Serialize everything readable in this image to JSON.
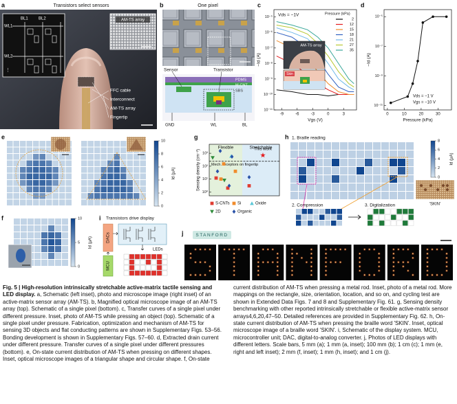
{
  "panel_labels": [
    "a",
    "b",
    "c",
    "d",
    "e",
    "f",
    "g",
    "h",
    "i",
    "j"
  ],
  "a": {
    "title": "Transistors select sensors",
    "schematic_labels": [
      "WL1",
      "BL1",
      "BL2",
      "WL2"
    ],
    "inset_label": "AM-TS array",
    "callouts": [
      "FFC cable",
      "Interconnect",
      "AM-TS array",
      "Fingertip"
    ]
  },
  "b": {
    "title": "One pixel",
    "labels": [
      "Sensor",
      "Transistor"
    ],
    "layers": [
      "PDMS",
      "M-CNT",
      "SBS"
    ],
    "terminals": [
      "GND",
      "WL",
      "BL"
    ]
  },
  "c": {
    "type": "line",
    "yscale": "log",
    "annotation": "Vds = −1V",
    "x_label": "Vgs (V)",
    "y_label": "−Id (A)",
    "inset_labels": [
      "AM-TS array",
      "Skin"
    ],
    "legend_title": "Pressure (kPa)",
    "x": [
      -10,
      -7,
      -4,
      -2,
      0,
      2,
      4,
      5
    ],
    "series": [
      {
        "name": "2",
        "color": "#111111",
        "values": [
          2e-10,
          1.5e-10,
          1e-10,
          1e-10,
          8e-11,
          1e-10,
          1e-10,
          1e-10
        ]
      },
      {
        "name": "12",
        "color": "#e41a1c",
        "values": [
          3e-08,
          1e-08,
          2e-09,
          5e-10,
          2e-10,
          1e-10,
          1e-10,
          1e-10
        ]
      },
      {
        "name": "15",
        "color": "#f08c2c",
        "values": [
          3e-07,
          1e-07,
          2e-08,
          3e-09,
          5e-10,
          1.5e-10,
          1e-10,
          1e-10
        ]
      },
      {
        "name": "18",
        "color": "#3060c0",
        "values": [
          1e-06,
          5e-07,
          1e-07,
          2e-08,
          2e-09,
          3e-10,
          1.5e-10,
          1.5e-10
        ]
      },
      {
        "name": "21",
        "color": "#6fb8e8",
        "values": [
          2e-06,
          1e-06,
          4e-07,
          8e-08,
          1e-08,
          1e-09,
          3e-10,
          2e-10
        ]
      },
      {
        "name": "27",
        "color": "#b8c832",
        "values": [
          3e-06,
          2e-06,
          8e-07,
          2e-07,
          3e-08,
          3e-09,
          5e-10,
          3e-10
        ]
      },
      {
        "name": "35",
        "color": "#3aa79a",
        "values": [
          5e-06,
          3e-06,
          1.5e-06,
          5e-07,
          1e-07,
          1e-08,
          1e-09,
          5e-10
        ]
      }
    ],
    "xlim": [
      -10.5,
      5.5
    ],
    "xticks": [
      -9,
      -6,
      -3,
      0,
      3
    ],
    "ylim": [
      1e-11,
      3e-05
    ],
    "yticks": [
      {
        "value": 1e-05,
        "label": "10⁻⁵"
      },
      {
        "value": 1e-06,
        "label": "10⁻⁶"
      },
      {
        "value": 1e-07,
        "label": "10⁻⁷"
      },
      {
        "value": 1e-08,
        "label": "10⁻⁸"
      },
      {
        "value": 1e-09,
        "label": "10⁻⁹"
      },
      {
        "value": 1e-10,
        "label": "10⁻¹⁰"
      },
      {
        "value": 1e-11,
        "label": "10⁻¹¹"
      }
    ]
  },
  "d": {
    "type": "line",
    "yscale": "log",
    "annotations": [
      "Vds = −1 V",
      "Vgs = −10 V"
    ],
    "x_label": "Pressure (kPa)",
    "y_label": "−Id (A)",
    "color": "#111111",
    "x": [
      2,
      12,
      15,
      18,
      21,
      27,
      35
    ],
    "values": [
      1.5e-11,
      4e-11,
      3e-10,
      1e-08,
      4e-06,
      1e-05,
      1e-05
    ],
    "xlim": [
      -2,
      38
    ],
    "xticks": [
      0,
      10,
      20,
      30
    ],
    "ylim": [
      5e-12,
      3e-05
    ],
    "yticks": [
      {
        "value": 1e-05,
        "label": "10⁻⁵"
      },
      {
        "value": 1e-07,
        "label": "10⁻⁷"
      },
      {
        "value": 1e-09,
        "label": "10⁻⁹"
      },
      {
        "value": 1e-11,
        "label": "10⁻¹¹"
      }
    ]
  },
  "e": {
    "grids": [
      [
        [
          1,
          1,
          1,
          1,
          1,
          1,
          1,
          1,
          1,
          1
        ],
        [
          1,
          1,
          1,
          1,
          1,
          1,
          1,
          1,
          1,
          1
        ],
        [
          1,
          1,
          1,
          1,
          5,
          6,
          1,
          1,
          1,
          1
        ],
        [
          1,
          1,
          1,
          6,
          7,
          7,
          6,
          1,
          1,
          1
        ],
        [
          1,
          1,
          6,
          7,
          8,
          8,
          7,
          6,
          1,
          1
        ],
        [
          1,
          1,
          6,
          8,
          8,
          8,
          8,
          6,
          1,
          1
        ],
        [
          1,
          1,
          5,
          7,
          8,
          8,
          7,
          5,
          1,
          1
        ],
        [
          1,
          1,
          1,
          6,
          7,
          7,
          6,
          1,
          1,
          1
        ],
        [
          1,
          1,
          1,
          1,
          5,
          5,
          1,
          1,
          1,
          1
        ],
        [
          1,
          1,
          1,
          1,
          1,
          1,
          1,
          1,
          1,
          1
        ]
      ],
      [
        [
          1,
          1,
          1,
          1,
          1,
          1,
          1,
          1,
          1,
          1
        ],
        [
          1,
          1,
          1,
          1,
          1,
          1,
          1,
          1,
          1,
          1
        ],
        [
          1,
          1,
          1,
          1,
          1,
          6,
          1,
          1,
          1,
          1
        ],
        [
          1,
          1,
          1,
          1,
          6,
          7,
          1,
          1,
          1,
          1
        ],
        [
          1,
          1,
          1,
          6,
          7,
          8,
          6,
          1,
          1,
          1
        ],
        [
          1,
          1,
          1,
          7,
          8,
          8,
          7,
          1,
          1,
          1
        ],
        [
          1,
          1,
          6,
          7,
          8,
          8,
          8,
          6,
          1,
          1
        ],
        [
          1,
          1,
          7,
          8,
          8,
          8,
          8,
          7,
          1,
          1
        ],
        [
          1,
          6,
          7,
          7,
          7,
          7,
          7,
          7,
          6,
          1
        ],
        [
          1,
          1,
          1,
          1,
          1,
          1,
          1,
          1,
          1,
          1
        ]
      ]
    ],
    "colorbar": {
      "label": "Id (µA)",
      "lim": [
        0,
        10
      ],
      "ticks": [
        0,
        2,
        4,
        6,
        8,
        10
      ],
      "colors": [
        "#d6e4f0",
        "#10468f"
      ]
    }
  },
  "f": {
    "grid": [
      [
        1,
        1,
        1,
        1,
        1,
        1,
        1,
        1
      ],
      [
        1,
        1,
        1,
        1,
        1,
        6,
        1,
        1
      ],
      [
        1,
        1,
        1,
        1,
        7,
        8,
        7,
        1
      ],
      [
        1,
        1,
        1,
        1,
        7,
        9,
        8,
        1
      ],
      [
        1,
        1,
        1,
        1,
        6,
        8,
        7,
        1
      ],
      [
        1,
        1,
        1,
        1,
        1,
        6,
        1,
        1
      ],
      [
        1,
        1,
        1,
        1,
        1,
        1,
        1,
        1
      ]
    ],
    "colorbar": {
      "label": "Id (µA)",
      "lim": [
        0,
        10
      ],
      "ticks": [
        0,
        5,
        10
      ],
      "colors": [
        "#d6e4f0",
        "#10468f"
      ]
    }
  },
  "g": {
    "y_label": "Sensing density (cm⁻²)",
    "yscale": "log",
    "ylim": [
      0.5,
      5000
    ],
    "yticks": [
      {
        "value": 1,
        "label": "10⁰"
      },
      {
        "value": 10,
        "label": "10¹"
      },
      {
        "value": 100,
        "label": "10²"
      },
      {
        "value": 1000,
        "label": "10³"
      }
    ],
    "regions": {
      "flexible": "Flexible",
      "stretchable": "Stretchable"
    },
    "reference": {
      "label": "Mech. receptors on fingertip",
      "value": 240
    },
    "this_work": {
      "label": "This work",
      "value": 700,
      "color": "#e41a1c"
    },
    "series": [
      {
        "name": "S-CNTs",
        "color": "#e03c31",
        "marker": "square",
        "flexible": [
          12,
          2
        ],
        "stretchable": [
          3
        ]
      },
      {
        "name": "Si",
        "color": "#f08c2c",
        "marker": "square",
        "flexible": [
          150,
          40,
          10
        ],
        "stretchable": []
      },
      {
        "name": "Oxide",
        "color": "#5bc8d8",
        "marker": "triangle",
        "flexible": [
          600
        ],
        "stretchable": []
      },
      {
        "name": "2D",
        "color": "#2e8b3a",
        "marker": "triangle-down",
        "flexible": [
          450,
          8
        ],
        "stretchable": []
      },
      {
        "name": "Organic",
        "color": "#2a52a8",
        "marker": "diamond",
        "flexible": [
          1500,
          550,
          40,
          3
        ],
        "stretchable": [
          14
        ]
      }
    ]
  },
  "h": {
    "steps": [
      "1. Braille reading",
      "2. Compression",
      "3. Digitalization"
    ],
    "inset_label": "'SKIN'",
    "grid": [
      [
        1,
        1,
        1,
        1,
        1,
        1,
        1,
        1,
        1,
        1,
        1,
        1,
        1,
        1,
        1
      ],
      [
        1,
        1,
        1,
        1,
        1,
        1,
        1,
        1,
        1,
        1,
        1,
        1,
        1,
        1,
        1
      ],
      [
        1,
        1,
        8,
        1,
        1,
        8,
        1,
        1,
        1,
        7,
        1,
        1,
        8,
        8,
        1
      ],
      [
        1,
        7,
        1,
        1,
        1,
        1,
        1,
        1,
        8,
        1,
        1,
        1,
        1,
        7,
        1
      ],
      [
        1,
        8,
        1,
        1,
        1,
        7,
        1,
        1,
        1,
        1,
        1,
        1,
        8,
        1,
        1
      ],
      [
        1,
        1,
        1,
        1,
        1,
        1,
        1,
        1,
        1,
        1,
        1,
        1,
        1,
        1,
        1
      ],
      [
        1,
        1,
        1,
        1,
        1,
        1,
        1,
        1,
        1,
        1,
        1,
        1,
        1,
        1,
        1
      ]
    ],
    "compression": [
      [
        1,
        8,
        8,
        1,
        1,
        7,
        8,
        8
      ],
      [
        7,
        1,
        1,
        1,
        8,
        1,
        1,
        7
      ],
      [
        8,
        1,
        7,
        1,
        1,
        1,
        8,
        1
      ]
    ],
    "digitalization": [
      [
        0,
        1,
        1,
        0,
        0,
        1,
        1,
        1
      ],
      [
        1,
        0,
        0,
        0,
        1,
        0,
        0,
        1
      ],
      [
        1,
        0,
        1,
        0,
        0,
        0,
        1,
        0
      ]
    ],
    "digital_colors": [
      "#ffffff",
      "#1f7a3a"
    ],
    "colorbar": {
      "label": "Id (µA)",
      "lim": [
        0,
        8
      ],
      "ticks": [
        0,
        2,
        4,
        6,
        8
      ],
      "colors": [
        "#d6e4f0",
        "#10468f"
      ]
    }
  },
  "i": {
    "title": "Transistors drive display",
    "blocks": [
      "DACs",
      "MCU"
    ],
    "leds_label": "LEDs"
  },
  "j": {
    "label": "STANFORD"
  },
  "caption": {
    "lead": "Fig. 5 | High-resolution intrinsically stretchable active-matrix tactile sensing and LED display.",
    "text": "a, Schematic (left inset), photo and microscope image (right inset) of an active-matrix sensor array (AM-TS). b, Magnified optical microscope image of an AM-TS array (top). Schematic of a single pixel (bottom). c, Transfer curves of a single pixel under different pressure. Inset, photo of AM-TS while pressing an object (top). Schematic of a single pixel under pressure. Fabrication, optimization and mechanism of AM-TS for sensing 3D objects and flat conducting patterns are shown in Supplementary Figs. 53–56. Bonding development is shown in Supplementary Figs. 57–60. d, Extracted drain current under different pressure. Transfer curves of a single pixel under different pressures (bottom). e, On-state current distribution of AM-TS when pressing on different shapes. Inset, optical microscope images of a triangular shape and circular shape. f, On-state current distribution of AM-TS when pressing a metal rod. Inset, photo of a metal rod. More mappings on the rectangle, size, orientation, location, and so on, and cycling test are shown in Extended Data Figs. 7 and 8 and Supplementary Fig. 61. g, Sensing density benchmarking with other reported intrinsically stretchable or flexible active-matrix sensor arrays4,6,20,47–50. Detailed references are provided in Supplementary Fig. 62. h, On-state current distribution of AM-TS when pressing the braille word 'SKIN'. Inset, optical microscope image of a braille word 'SKIN'. i, Schematic of the display system. MCU, microcontroller unit; DAC, digital-to-analog converter. j, Photos of LED displays with different letters. Scale bars, 5 mm (a); 1 mm (a, inset); 100 mm (b); 1 cm (c); 1 mm (e, right and left inset); 2 mm (f, inset); 1 mm (h, inset); and 1 cm (j)."
  }
}
